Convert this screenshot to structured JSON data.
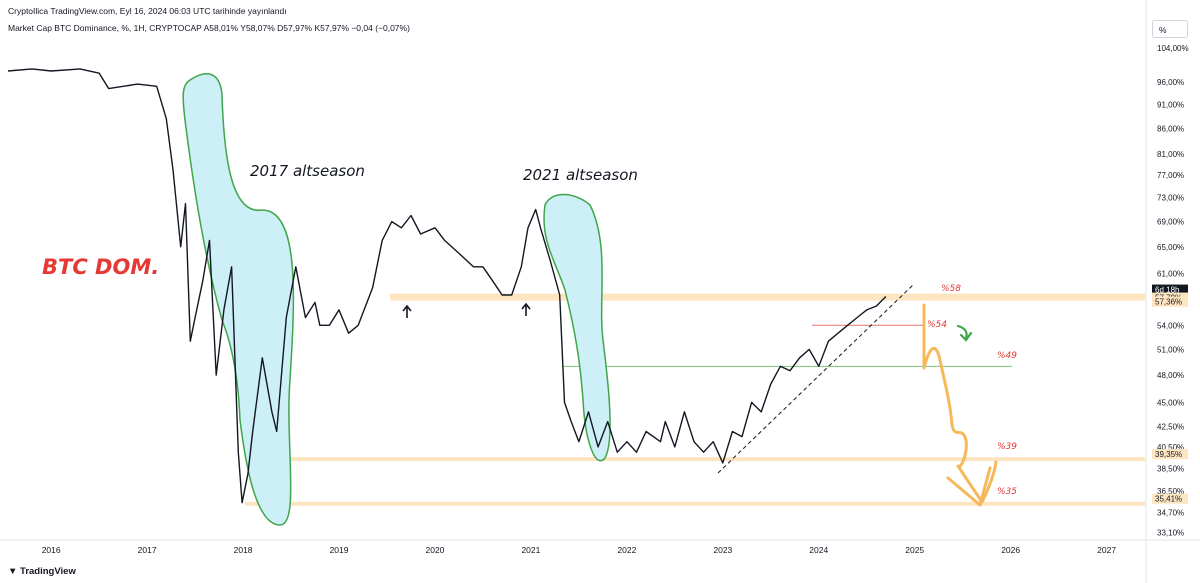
{
  "header": {
    "publish_line": "CryptoIlica TradingView.com, Eyl 16, 2024 06:03 UTC tarihinde yayınlandı",
    "legend_line": "Market Cap BTC Dominance, %, 1H, CRYPTOCAP  A58,01%  Y58,07%  D57,97%  K57,97%  −0,04 (−0,07%)",
    "scale_toggle": "%"
  },
  "footer": {
    "logo_text": "TradingView"
  },
  "colors": {
    "price": "#131722",
    "highlight_fill": "#cdeff7",
    "highlight_stroke": "#3fa64a",
    "band": "#fde5c2",
    "forecast": "#f5b95a",
    "green_arrow": "#3fa64a",
    "label_red": "#e53935"
  },
  "chart_data": {
    "type": "line",
    "y_scale": "log",
    "ylim": [
      32.5,
      106
    ],
    "xlim": [
      2015.55,
      2027.4
    ],
    "y_ticks": [
      "104,00%",
      "96,00%",
      "91,00%",
      "86,00%",
      "81,00%",
      "77,00%",
      "73,00%",
      "69,00%",
      "65,00%",
      "61,00%",
      "54,00%",
      "51,00%",
      "48,00%",
      "45,00%",
      "42,50%",
      "40,50%",
      "38,50%",
      "36,50%",
      "34,70%",
      "33,10%"
    ],
    "y_tick_values": [
      104,
      96,
      91,
      86,
      81,
      77,
      73,
      69,
      65,
      61,
      54,
      51,
      48,
      45,
      42.5,
      40.5,
      38.5,
      36.5,
      34.7,
      33.1
    ],
    "x_ticks": [
      "2016",
      "2017",
      "2018",
      "2019",
      "2020",
      "2021",
      "2022",
      "2023",
      "2024",
      "2025",
      "2026",
      "2027"
    ],
    "x_tick_values": [
      2016,
      2017,
      2018,
      2019,
      2020,
      2021,
      2022,
      2023,
      2024,
      2025,
      2026,
      2027
    ],
    "series": [
      {
        "x": [
          2015.55,
          2015.8,
          2016.0,
          2016.3,
          2016.5,
          2016.6,
          2016.9,
          2017.1,
          2017.2,
          2017.27,
          2017.35,
          2017.4,
          2017.45,
          2017.5,
          2017.58,
          2017.65,
          2017.72,
          2017.8,
          2017.88,
          2017.95,
          2017.99,
          2018.05,
          2018.1,
          2018.2,
          2018.3,
          2018.35,
          2018.45,
          2018.55,
          2018.65,
          2018.75,
          2018.8,
          2018.9,
          2019.0,
          2019.1,
          2019.2,
          2019.35,
          2019.45,
          2019.55,
          2019.65,
          2019.75,
          2019.85,
          2020.0,
          2020.1,
          2020.25,
          2020.4,
          2020.5,
          2020.6,
          2020.7,
          2020.8,
          2020.9,
          2020.97,
          2021.05,
          2021.1,
          2021.2,
          2021.3,
          2021.35,
          2021.42,
          2021.5,
          2021.6,
          2021.7,
          2021.8,
          2021.9,
          2022.0,
          2022.1,
          2022.2,
          2022.35,
          2022.4,
          2022.5,
          2022.6,
          2022.7,
          2022.8,
          2022.9,
          2023.0,
          2023.1,
          2023.2,
          2023.3,
          2023.4,
          2023.5,
          2023.6,
          2023.7,
          2023.8,
          2023.9,
          2024.0,
          2024.1,
          2024.2,
          2024.3,
          2024.4,
          2024.5,
          2024.6,
          2024.7
        ],
        "y": [
          98.5,
          99,
          98.5,
          99,
          98,
          94.5,
          95.5,
          95,
          88,
          78,
          65,
          72,
          52,
          55,
          60,
          66,
          48,
          56,
          62,
          40,
          35.5,
          38,
          42,
          50,
          44,
          42,
          55,
          62,
          55,
          57,
          54,
          54,
          56,
          53,
          54,
          59,
          66,
          69,
          68,
          70,
          67,
          68,
          66,
          64,
          62,
          62,
          60,
          58,
          58,
          62,
          68,
          71,
          68,
          63,
          58,
          45,
          43,
          41,
          44,
          40.5,
          43,
          40,
          41,
          40,
          42,
          41,
          43,
          40.5,
          44,
          41,
          40,
          41,
          39,
          42,
          41.5,
          45,
          44,
          47,
          49,
          48.5,
          50,
          51,
          49,
          52,
          53,
          54,
          55,
          56,
          56.5,
          57.8
        ]
      }
    ],
    "annotations": [
      "2017 altseason",
      "2021 altseason",
      "BTC DOM."
    ],
    "levels": [
      {
        "value": 57.79,
        "label": "57,79%"
      },
      {
        "value": 57.36,
        "label": "57,36%"
      },
      {
        "value": 39.35,
        "label": "39,35%"
      },
      {
        "value": 35.41,
        "label": "35,41%"
      }
    ],
    "countdown_label": "6d 18h",
    "target_labels": [
      "%58",
      "%54",
      "%49",
      "%39",
      "%35"
    ]
  }
}
